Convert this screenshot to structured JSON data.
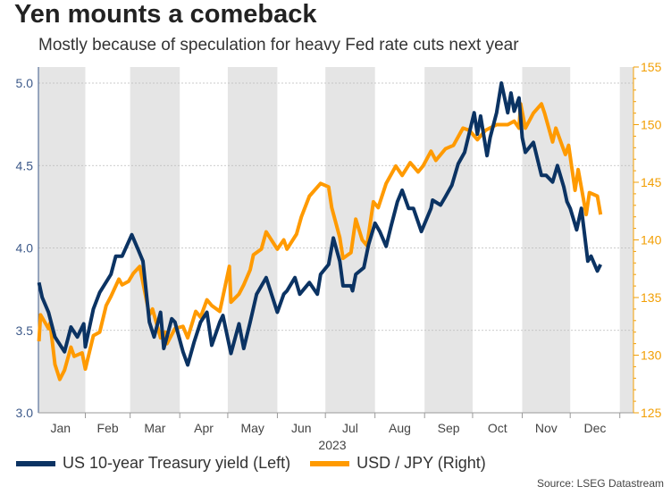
{
  "title": "Yen mounts a comeback",
  "subtitle": "Mostly because of speculation for heavy Fed rate cuts next year",
  "source": "Source: LSEG Datastream",
  "colors": {
    "yield": "#0b3363",
    "usdjpy": "#ff9a00",
    "left_axis": "#3d5a8a",
    "right_axis": "#f29f05",
    "band": "#e5e5e5",
    "grid": "#bbbbbb"
  },
  "chart_data": {
    "type": "line",
    "title": "Yen mounts a comeback",
    "xlabel": "2023",
    "x_tick_labels": [
      "Jan",
      "Feb",
      "Mar",
      "Apr",
      "May",
      "Jun",
      "Jul",
      "Aug",
      "Sep",
      "Oct",
      "Nov",
      "Dec"
    ],
    "y_left": {
      "range": [
        3.0,
        5.1
      ],
      "ticks": [
        "3.0",
        "3.5",
        "4.0",
        "4.5",
        "5.0"
      ]
    },
    "y_right": {
      "range": [
        125,
        155
      ],
      "ticks": [
        "125",
        "130",
        "135",
        "140",
        "145",
        "150",
        "155"
      ]
    },
    "grid": "horizontal dotted at left-axis ticks",
    "shaded_bands": "alternate months",
    "legend_placement": "bottom",
    "series": [
      {
        "name": "US 10-year Treasury yield (Left)",
        "axis": "left",
        "points": [
          [
            "2023-01-03",
            3.79
          ],
          [
            "2023-01-05",
            3.7
          ],
          [
            "2023-01-09",
            3.61
          ],
          [
            "2023-01-13",
            3.46
          ],
          [
            "2023-01-19",
            3.37
          ],
          [
            "2023-01-23",
            3.52
          ],
          [
            "2023-01-27",
            3.46
          ],
          [
            "2023-01-31",
            3.54
          ],
          [
            "2023-02-01",
            3.4
          ],
          [
            "2023-02-06",
            3.63
          ],
          [
            "2023-02-10",
            3.73
          ],
          [
            "2023-02-17",
            3.84
          ],
          [
            "2023-02-20",
            3.95
          ],
          [
            "2023-02-24",
            3.95
          ],
          [
            "2023-03-02",
            4.08
          ],
          [
            "2023-03-06",
            3.99
          ],
          [
            "2023-03-09",
            3.92
          ],
          [
            "2023-03-13",
            3.55
          ],
          [
            "2023-03-16",
            3.46
          ],
          [
            "2023-03-20",
            3.61
          ],
          [
            "2023-03-22",
            3.39
          ],
          [
            "2023-03-27",
            3.57
          ],
          [
            "2023-03-29",
            3.55
          ],
          [
            "2023-04-03",
            3.37
          ],
          [
            "2023-04-06",
            3.29
          ],
          [
            "2023-04-10",
            3.43
          ],
          [
            "2023-04-14",
            3.55
          ],
          [
            "2023-04-18",
            3.61
          ],
          [
            "2023-04-21",
            3.41
          ],
          [
            "2023-04-26",
            3.55
          ],
          [
            "2023-04-28",
            3.59
          ],
          [
            "2023-05-03",
            3.36
          ],
          [
            "2023-05-08",
            3.54
          ],
          [
            "2023-05-11",
            3.39
          ],
          [
            "2023-05-15",
            3.55
          ],
          [
            "2023-05-19",
            3.72
          ],
          [
            "2023-05-25",
            3.82
          ],
          [
            "2023-06-01",
            3.61
          ],
          [
            "2023-06-05",
            3.72
          ],
          [
            "2023-06-07",
            3.74
          ],
          [
            "2023-06-12",
            3.82
          ],
          [
            "2023-06-15",
            3.72
          ],
          [
            "2023-06-21",
            3.79
          ],
          [
            "2023-06-26",
            3.72
          ],
          [
            "2023-06-28",
            3.84
          ],
          [
            "2023-07-03",
            3.9
          ],
          [
            "2023-07-06",
            4.06
          ],
          [
            "2023-07-10",
            3.92
          ],
          [
            "2023-07-12",
            3.77
          ],
          [
            "2023-07-17",
            3.77
          ],
          [
            "2023-07-18",
            3.74
          ],
          [
            "2023-07-20",
            3.84
          ],
          [
            "2023-07-25",
            3.88
          ],
          [
            "2023-07-28",
            4.02
          ],
          [
            "2023-08-01",
            4.15
          ],
          [
            "2023-08-04",
            4.1
          ],
          [
            "2023-08-08",
            4.01
          ],
          [
            "2023-08-11",
            4.13
          ],
          [
            "2023-08-15",
            4.28
          ],
          [
            "2023-08-18",
            4.35
          ],
          [
            "2023-08-22",
            4.24
          ],
          [
            "2023-08-25",
            4.24
          ],
          [
            "2023-08-30",
            4.1
          ],
          [
            "2023-09-05",
            4.24
          ],
          [
            "2023-09-06",
            4.29
          ],
          [
            "2023-09-11",
            4.26
          ],
          [
            "2023-09-14",
            4.31
          ],
          [
            "2023-09-18",
            4.38
          ],
          [
            "2023-09-22",
            4.51
          ],
          [
            "2023-09-26",
            4.58
          ],
          [
            "2023-10-02",
            4.82
          ],
          [
            "2023-10-04",
            4.69
          ],
          [
            "2023-10-06",
            4.8
          ],
          [
            "2023-10-10",
            4.56
          ],
          [
            "2023-10-12",
            4.67
          ],
          [
            "2023-10-16",
            4.82
          ],
          [
            "2023-10-19",
            5.0
          ],
          [
            "2023-10-23",
            4.82
          ],
          [
            "2023-10-25",
            4.94
          ],
          [
            "2023-10-27",
            4.83
          ],
          [
            "2023-10-30",
            4.91
          ],
          [
            "2023-11-01",
            4.67
          ],
          [
            "2023-11-03",
            4.58
          ],
          [
            "2023-11-08",
            4.64
          ],
          [
            "2023-11-13",
            4.44
          ],
          [
            "2023-11-16",
            4.44
          ],
          [
            "2023-11-20",
            4.4
          ],
          [
            "2023-11-23",
            4.5
          ],
          [
            "2023-11-27",
            4.37
          ],
          [
            "2023-11-29",
            4.28
          ],
          [
            "2023-12-01",
            4.24
          ],
          [
            "2023-12-05",
            4.11
          ],
          [
            "2023-12-08",
            4.24
          ],
          [
            "2023-12-12",
            3.92
          ],
          [
            "2023-12-14",
            3.95
          ],
          [
            "2023-12-18",
            3.86
          ],
          [
            "2023-12-20",
            3.9
          ]
        ]
      },
      {
        "name": "USD / JPY (Right)",
        "axis": "right",
        "points": [
          [
            "2023-01-03",
            131.2
          ],
          [
            "2023-01-04",
            133.5
          ],
          [
            "2023-01-09",
            132.3
          ],
          [
            "2023-01-10",
            132.8
          ],
          [
            "2023-01-13",
            129.2
          ],
          [
            "2023-01-16",
            127.9
          ],
          [
            "2023-01-19",
            128.7
          ],
          [
            "2023-01-23",
            130.7
          ],
          [
            "2023-01-25",
            129.9
          ],
          [
            "2023-01-30",
            130.2
          ],
          [
            "2023-02-01",
            128.8
          ],
          [
            "2023-02-06",
            131.7
          ],
          [
            "2023-02-10",
            132.0
          ],
          [
            "2023-02-14",
            134.3
          ],
          [
            "2023-02-17",
            135.1
          ],
          [
            "2023-02-22",
            136.6
          ],
          [
            "2023-02-24",
            136.1
          ],
          [
            "2023-02-28",
            136.4
          ],
          [
            "2023-03-03",
            137.1
          ],
          [
            "2023-03-07",
            137.7
          ],
          [
            "2023-03-10",
            135.6
          ],
          [
            "2023-03-13",
            133.5
          ],
          [
            "2023-03-15",
            134.0
          ],
          [
            "2023-03-20",
            131.5
          ],
          [
            "2023-03-23",
            132.0
          ],
          [
            "2023-03-24",
            131.0
          ],
          [
            "2023-03-29",
            132.3
          ],
          [
            "2023-04-03",
            132.5
          ],
          [
            "2023-04-06",
            131.5
          ],
          [
            "2023-04-11",
            133.8
          ],
          [
            "2023-04-14",
            133.3
          ],
          [
            "2023-04-18",
            134.8
          ],
          [
            "2023-04-21",
            134.3
          ],
          [
            "2023-04-26",
            133.8
          ],
          [
            "2023-05-02",
            137.7
          ],
          [
            "2023-05-03",
            134.6
          ],
          [
            "2023-05-08",
            135.3
          ],
          [
            "2023-05-11",
            136.1
          ],
          [
            "2023-05-15",
            137.4
          ],
          [
            "2023-05-17",
            138.7
          ],
          [
            "2023-05-22",
            139.2
          ],
          [
            "2023-05-25",
            140.7
          ],
          [
            "2023-06-01",
            139.2
          ],
          [
            "2023-06-05",
            140.0
          ],
          [
            "2023-06-07",
            139.2
          ],
          [
            "2023-06-13",
            140.5
          ],
          [
            "2023-06-16",
            142.0
          ],
          [
            "2023-06-21",
            143.8
          ],
          [
            "2023-06-28",
            144.9
          ],
          [
            "2023-07-03",
            144.6
          ],
          [
            "2023-07-05",
            142.8
          ],
          [
            "2023-07-10",
            140.2
          ],
          [
            "2023-07-12",
            138.4
          ],
          [
            "2023-07-17",
            138.9
          ],
          [
            "2023-07-20",
            141.8
          ],
          [
            "2023-07-24",
            140.0
          ],
          [
            "2023-07-27",
            139.5
          ],
          [
            "2023-07-31",
            143.3
          ],
          [
            "2023-08-03",
            142.8
          ],
          [
            "2023-08-08",
            144.9
          ],
          [
            "2023-08-14",
            146.4
          ],
          [
            "2023-08-18",
            145.6
          ],
          [
            "2023-08-23",
            146.7
          ],
          [
            "2023-08-28",
            145.9
          ],
          [
            "2023-08-31",
            146.4
          ],
          [
            "2023-09-05",
            147.7
          ],
          [
            "2023-09-08",
            146.9
          ],
          [
            "2023-09-14",
            147.9
          ],
          [
            "2023-09-19",
            148.2
          ],
          [
            "2023-09-25",
            149.7
          ],
          [
            "2023-09-29",
            149.5
          ],
          [
            "2023-10-04",
            148.7
          ],
          [
            "2023-10-09",
            149.5
          ],
          [
            "2023-10-16",
            150.0
          ],
          [
            "2023-10-23",
            150.0
          ],
          [
            "2023-10-27",
            150.3
          ],
          [
            "2023-10-30",
            149.7
          ],
          [
            "2023-10-31",
            151.8
          ],
          [
            "2023-11-03",
            149.7
          ],
          [
            "2023-11-08",
            151.0
          ],
          [
            "2023-11-13",
            151.8
          ],
          [
            "2023-11-15",
            151.0
          ],
          [
            "2023-11-20",
            148.5
          ],
          [
            "2023-11-22",
            149.7
          ],
          [
            "2023-11-28",
            147.4
          ],
          [
            "2023-11-30",
            148.2
          ],
          [
            "2023-12-04",
            144.3
          ],
          [
            "2023-12-06",
            146.1
          ],
          [
            "2023-12-11",
            142.2
          ],
          [
            "2023-12-13",
            144.1
          ],
          [
            "2023-12-18",
            143.8
          ],
          [
            "2023-12-20",
            142.2
          ]
        ]
      }
    ]
  }
}
